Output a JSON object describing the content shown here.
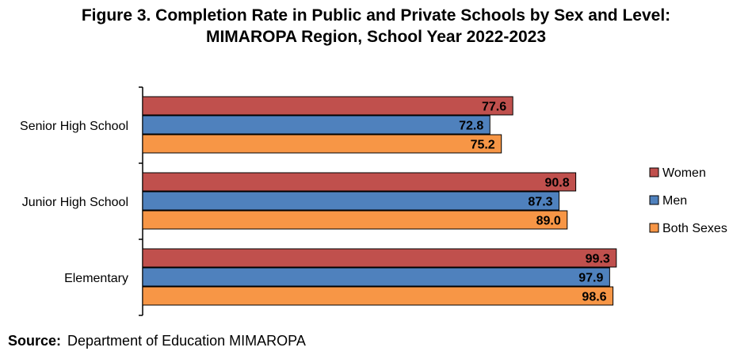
{
  "title": {
    "line1": "Figure 3. Completion Rate in Public and Private Schools by Sex and Level:",
    "line2": "MIMAROPA Region, School Year 2022-2023"
  },
  "source": {
    "label": "Source:",
    "text": "Department of Education MIMAROPA"
  },
  "colors": {
    "women": "#c0504d",
    "men": "#4f81bd",
    "both": "#f79646"
  },
  "chart_data": {
    "type": "bar",
    "orientation": "horizontal",
    "categories": [
      "Senior High School",
      "Junior High School",
      "Elementary"
    ],
    "series": [
      {
        "name": "Women",
        "color": "#c0504d",
        "values": [
          77.6,
          90.8,
          99.3
        ]
      },
      {
        "name": "Men",
        "color": "#4f81bd",
        "values": [
          72.8,
          87.3,
          97.9
        ]
      },
      {
        "name": "Both Sexes",
        "color": "#f79646",
        "values": [
          75.2,
          89.0,
          98.6
        ]
      }
    ],
    "data_labels": [
      [
        "77.6",
        "90.8",
        "99.3"
      ],
      [
        "72.8",
        "87.3",
        "97.9"
      ],
      [
        "75.2",
        "89.0",
        "98.6"
      ]
    ],
    "xlim": [
      0,
      100
    ],
    "grid": false,
    "legend_position": "right"
  }
}
